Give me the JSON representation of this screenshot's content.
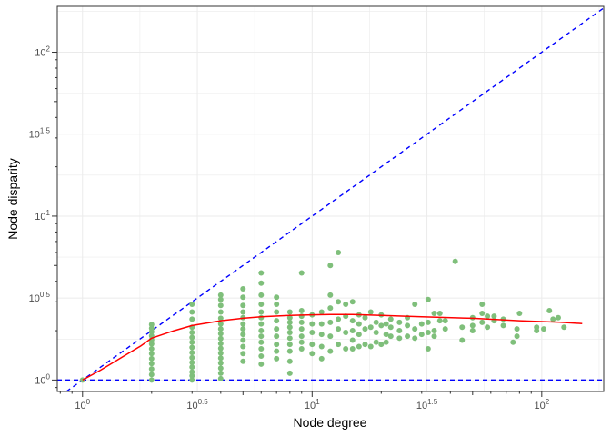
{
  "chart_data": {
    "type": "scatter",
    "x_scale": "log10",
    "y_scale": "log10",
    "xlabel": "Node degree",
    "ylabel": "Node disparity",
    "x_ticks": [
      {
        "value": 1,
        "base": "10",
        "exp": "0"
      },
      {
        "value": 3.162,
        "base": "10",
        "exp": "0.5"
      },
      {
        "value": 10,
        "base": "10",
        "exp": "1"
      },
      {
        "value": 31.62,
        "base": "10",
        "exp": "1.5"
      },
      {
        "value": 100,
        "base": "10",
        "exp": "2"
      }
    ],
    "y_ticks": [
      {
        "value": 1,
        "base": "10",
        "exp": "0"
      },
      {
        "value": 3.162,
        "base": "10",
        "exp": "0.5"
      },
      {
        "value": 10,
        "base": "10",
        "exp": "1"
      },
      {
        "value": 31.62,
        "base": "10",
        "exp": "1.5"
      },
      {
        "value": 100,
        "base": "10",
        "exp": "2"
      }
    ],
    "xlim_log10": [
      -0.11,
      2.27
    ],
    "ylim_log10": [
      -0.07,
      2.28
    ],
    "grid": true,
    "point_color": "#7fbf7b",
    "fit_color": "#ff0000",
    "ref_color": "#0000ff",
    "points": [
      [
        1,
        1
      ],
      [
        2,
        1
      ],
      [
        2,
        1.08
      ],
      [
        2,
        1.17
      ],
      [
        2,
        1.26
      ],
      [
        2,
        1.35
      ],
      [
        2,
        1.45
      ],
      [
        2,
        1.55
      ],
      [
        2,
        1.66
      ],
      [
        2,
        1.76
      ],
      [
        2,
        1.86
      ],
      [
        2,
        1.97
      ],
      [
        2,
        2.07
      ],
      [
        2,
        2.18
      ],
      [
        3,
        1
      ],
      [
        3,
        1.06
      ],
      [
        3,
        1.12
      ],
      [
        3,
        1.2
      ],
      [
        3,
        1.28
      ],
      [
        3,
        1.37
      ],
      [
        3,
        1.47
      ],
      [
        3,
        1.58
      ],
      [
        3,
        1.7
      ],
      [
        3,
        1.82
      ],
      [
        3,
        1.95
      ],
      [
        3,
        2.1
      ],
      [
        3,
        2.35
      ],
      [
        3,
        2.6
      ],
      [
        3,
        2.9
      ],
      [
        4,
        1.02
      ],
      [
        4,
        1.1
      ],
      [
        4,
        1.18
      ],
      [
        4,
        1.27
      ],
      [
        4,
        1.36
      ],
      [
        4,
        1.46
      ],
      [
        4,
        1.56
      ],
      [
        4,
        1.67
      ],
      [
        4,
        1.79
      ],
      [
        4,
        1.92
      ],
      [
        4,
        2.05
      ],
      [
        4,
        2.2
      ],
      [
        4,
        2.38
      ],
      [
        4,
        2.6
      ],
      [
        4,
        2.85
      ],
      [
        4,
        3.1
      ],
      [
        4,
        3.3
      ],
      [
        5,
        1.3
      ],
      [
        5,
        1.45
      ],
      [
        5,
        1.6
      ],
      [
        5,
        1.75
      ],
      [
        5,
        1.9
      ],
      [
        5,
        2.05
      ],
      [
        5,
        2.2
      ],
      [
        5,
        2.4
      ],
      [
        5,
        2.6
      ],
      [
        5,
        2.85
      ],
      [
        5,
        3.2
      ],
      [
        5,
        3.6
      ],
      [
        6,
        1.25
      ],
      [
        6,
        1.4
      ],
      [
        6,
        1.55
      ],
      [
        6,
        1.7
      ],
      [
        6,
        1.85
      ],
      [
        6,
        2.0
      ],
      [
        6,
        2.2
      ],
      [
        6,
        2.4
      ],
      [
        6,
        2.6
      ],
      [
        6,
        2.9
      ],
      [
        6,
        3.3
      ],
      [
        6,
        3.9
      ],
      [
        6,
        4.5
      ],
      [
        7,
        1.35
      ],
      [
        7,
        1.5
      ],
      [
        7,
        1.65
      ],
      [
        7,
        1.85
      ],
      [
        7,
        2.05
      ],
      [
        7,
        2.3
      ],
      [
        7,
        2.6
      ],
      [
        7,
        2.9
      ],
      [
        7,
        3.2
      ],
      [
        8,
        1.1
      ],
      [
        8,
        1.3
      ],
      [
        8,
        1.5
      ],
      [
        8,
        1.65
      ],
      [
        8,
        1.8
      ],
      [
        8,
        1.95
      ],
      [
        8,
        2.1
      ],
      [
        8,
        2.25
      ],
      [
        8,
        2.4
      ],
      [
        8,
        2.6
      ],
      [
        9,
        1.55
      ],
      [
        9,
        1.7
      ],
      [
        9,
        1.85
      ],
      [
        9,
        2.05
      ],
      [
        9,
        2.25
      ],
      [
        9,
        2.45
      ],
      [
        9,
        2.65
      ],
      [
        9,
        4.5
      ],
      [
        10,
        1.45
      ],
      [
        10,
        1.65
      ],
      [
        10,
        1.95
      ],
      [
        10,
        2.2
      ],
      [
        10,
        2.5
      ],
      [
        11,
        1.35
      ],
      [
        11,
        1.6
      ],
      [
        11,
        1.9
      ],
      [
        11,
        2.2
      ],
      [
        11,
        2.6
      ],
      [
        12,
        1.5
      ],
      [
        12,
        1.85
      ],
      [
        12,
        2.25
      ],
      [
        12,
        2.75
      ],
      [
        12,
        3.3
      ],
      [
        12,
        5.0
      ],
      [
        13,
        1.65
      ],
      [
        13,
        2.05
      ],
      [
        13,
        2.35
      ],
      [
        13,
        3.0
      ],
      [
        13,
        6.0
      ],
      [
        14,
        1.55
      ],
      [
        14,
        1.95
      ],
      [
        14,
        2.45
      ],
      [
        14,
        2.9
      ],
      [
        15,
        1.55
      ],
      [
        15,
        1.75
      ],
      [
        15,
        2.0
      ],
      [
        15,
        2.3
      ],
      [
        15,
        3.0
      ],
      [
        16,
        1.6
      ],
      [
        16,
        1.9
      ],
      [
        16,
        2.2
      ],
      [
        16,
        2.5
      ],
      [
        17,
        1.65
      ],
      [
        17,
        2.05
      ],
      [
        17,
        2.4
      ],
      [
        18,
        1.6
      ],
      [
        18,
        2.1
      ],
      [
        18,
        2.6
      ],
      [
        19,
        1.7
      ],
      [
        19,
        1.95
      ],
      [
        19,
        2.25
      ],
      [
        20,
        1.65
      ],
      [
        20,
        2.15
      ],
      [
        20,
        2.5
      ],
      [
        21,
        1.7
      ],
      [
        21,
        1.9
      ],
      [
        21,
        2.2
      ],
      [
        22,
        1.85
      ],
      [
        22,
        2.1
      ],
      [
        22,
        2.35
      ],
      [
        24,
        1.8
      ],
      [
        24,
        2.0
      ],
      [
        24,
        2.25
      ],
      [
        26,
        1.85
      ],
      [
        26,
        2.15
      ],
      [
        26,
        2.4
      ],
      [
        28,
        1.8
      ],
      [
        28,
        2.05
      ],
      [
        28,
        2.9
      ],
      [
        30,
        1.9
      ],
      [
        30,
        2.2
      ],
      [
        32,
        1.55
      ],
      [
        32,
        1.95
      ],
      [
        32,
        2.25
      ],
      [
        32,
        3.1
      ],
      [
        34,
        1.85
      ],
      [
        34,
        2.0
      ],
      [
        34,
        2.55
      ],
      [
        36,
        2.3
      ],
      [
        36,
        2.55
      ],
      [
        38,
        2.05
      ],
      [
        38,
        2.3
      ],
      [
        42,
        5.3
      ],
      [
        45,
        1.75
      ],
      [
        45,
        2.1
      ],
      [
        50,
        2.0
      ],
      [
        50,
        2.15
      ],
      [
        50,
        2.4
      ],
      [
        55,
        2.25
      ],
      [
        55,
        2.55
      ],
      [
        55,
        2.9
      ],
      [
        58,
        2.1
      ],
      [
        58,
        2.45
      ],
      [
        62,
        2.3
      ],
      [
        62,
        2.45
      ],
      [
        68,
        2.15
      ],
      [
        68,
        2.35
      ],
      [
        75,
        1.7
      ],
      [
        78,
        1.85
      ],
      [
        78,
        2.05
      ],
      [
        80,
        2.55
      ],
      [
        95,
        2.0
      ],
      [
        95,
        2.1
      ],
      [
        102,
        2.05
      ],
      [
        108,
        2.65
      ],
      [
        112,
        2.35
      ],
      [
        118,
        2.4
      ],
      [
        125,
        2.1
      ]
    ],
    "fit_curve": [
      [
        1,
        1
      ],
      [
        1.2,
        1.15
      ],
      [
        1.5,
        1.39
      ],
      [
        1.8,
        1.62
      ],
      [
        2,
        1.8
      ],
      [
        2.5,
        2.0
      ],
      [
        3,
        2.15
      ],
      [
        4,
        2.3
      ],
      [
        5,
        2.38
      ],
      [
        6,
        2.43
      ],
      [
        8,
        2.48
      ],
      [
        10,
        2.5
      ],
      [
        12,
        2.51
      ],
      [
        15,
        2.51
      ],
      [
        20,
        2.48
      ],
      [
        30,
        2.43
      ],
      [
        50,
        2.38
      ],
      [
        80,
        2.3
      ],
      [
        120,
        2.25
      ],
      [
        150,
        2.21
      ]
    ],
    "ref_lines": [
      {
        "type": "identity"
      },
      {
        "type": "horizontal",
        "y": 1
      }
    ]
  }
}
